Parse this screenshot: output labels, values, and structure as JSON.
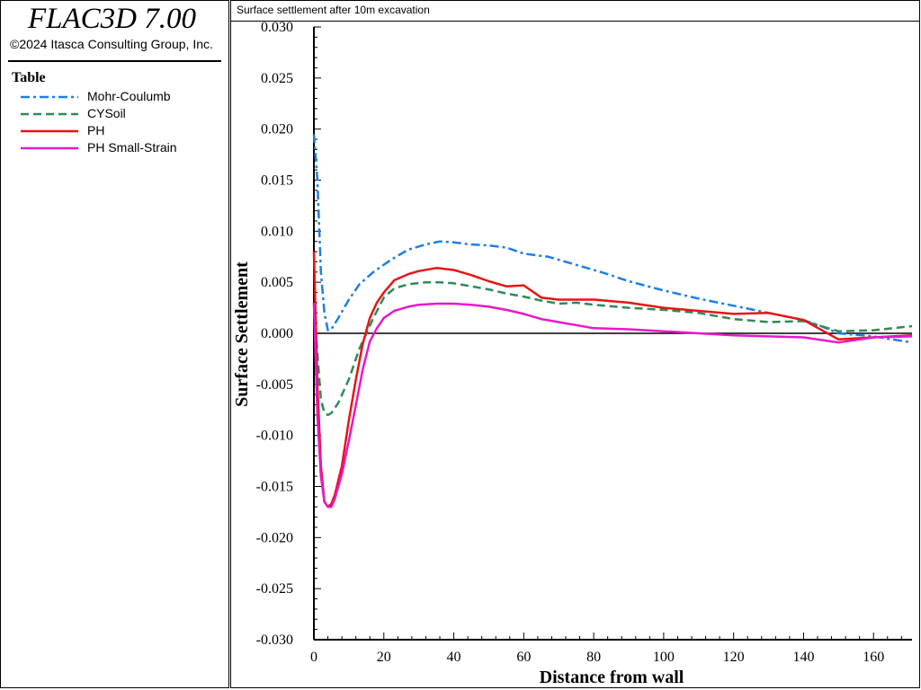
{
  "app": {
    "title": "FLAC3D 7.00",
    "copyright": "©2024 Itasca Consulting Group, Inc."
  },
  "legend": {
    "title": "Table",
    "items": [
      {
        "label": "Mohr-Coulumb",
        "color": "#1e7ee8",
        "dash": "dash-dot"
      },
      {
        "label": "CYSoil",
        "color": "#2e8b57",
        "dash": "dashed"
      },
      {
        "label": "PH",
        "color": "#e81414",
        "dash": "solid"
      },
      {
        "label": "PH Small-Strain",
        "color": "#e818c8",
        "dash": "solid"
      }
    ]
  },
  "chart_data": {
    "type": "line",
    "title": "Surface settlement after 10m excavation",
    "xlabel": "Distance from wall",
    "ylabel": "Surface Settlement",
    "xlim": [
      0,
      171
    ],
    "ylim": [
      -0.03,
      0.03
    ],
    "xticks": [
      0,
      20,
      40,
      60,
      80,
      100,
      120,
      140,
      160
    ],
    "yticks": [
      "0.030",
      "0.025",
      "0.020",
      "0.015",
      "0.010",
      "0.005",
      "0.000",
      "-0.005",
      "-0.010",
      "-0.015",
      "-0.020",
      "-0.025",
      "-0.030"
    ],
    "zero_line": true,
    "series": [
      {
        "name": "Mohr-Coulumb",
        "color": "#1e7ee8",
        "dash": "dash-dot",
        "x": [
          0,
          1,
          2,
          3,
          4,
          5,
          7,
          10,
          13,
          17,
          22,
          27,
          32,
          36,
          40,
          45,
          50,
          55,
          60,
          67,
          75,
          83,
          90,
          100,
          110,
          120,
          130,
          140,
          145,
          150,
          160,
          171
        ],
        "y": [
          0.0195,
          0.015,
          0.006,
          0.002,
          0.0003,
          0.0004,
          0.0015,
          0.0033,
          0.0048,
          0.006,
          0.0072,
          0.0082,
          0.0087,
          0.009,
          0.0089,
          0.0087,
          0.0086,
          0.0084,
          0.0078,
          0.0075,
          0.0067,
          0.0059,
          0.0051,
          0.0042,
          0.0034,
          0.0027,
          0.002,
          0.0013,
          0.0007,
          0.0,
          -0.0003,
          -0.0009
        ]
      },
      {
        "name": "CYSoil",
        "color": "#2e8b57",
        "dash": "dashed",
        "x": [
          0,
          1,
          2,
          3,
          4,
          5,
          7,
          10,
          13,
          17,
          20,
          23,
          27,
          32,
          36,
          40,
          45,
          50,
          55,
          60,
          65,
          70,
          75,
          80,
          90,
          100,
          110,
          120,
          130,
          140,
          145,
          150,
          160,
          171
        ],
        "y": [
          0.003,
          -0.002,
          -0.0065,
          -0.0078,
          -0.008,
          -0.0078,
          -0.0068,
          -0.0045,
          -0.0015,
          0.0015,
          0.0035,
          0.0044,
          0.0048,
          0.005,
          0.005,
          0.0049,
          0.0046,
          0.0043,
          0.0039,
          0.0036,
          0.0032,
          0.0029,
          0.003,
          0.0028,
          0.0025,
          0.0023,
          0.002,
          0.0014,
          0.0011,
          0.0012,
          0.0007,
          0.0002,
          0.0003,
          0.0007
        ]
      },
      {
        "name": "PH",
        "color": "#e81414",
        "dash": "solid",
        "x": [
          0,
          1,
          2,
          3,
          4,
          5,
          6,
          8,
          10,
          12,
          14,
          16,
          18,
          20,
          23,
          27,
          30,
          35,
          40,
          45,
          50,
          55,
          60,
          65,
          70,
          80,
          90,
          100,
          110,
          120,
          130,
          140,
          150,
          160,
          171
        ],
        "y": [
          0.008,
          -0.005,
          -0.013,
          -0.0165,
          -0.017,
          -0.0167,
          -0.0158,
          -0.013,
          -0.0085,
          -0.0045,
          -0.001,
          0.0015,
          0.003,
          0.004,
          0.0052,
          0.0058,
          0.0061,
          0.0064,
          0.0062,
          0.0057,
          0.0051,
          0.0046,
          0.0047,
          0.0035,
          0.0033,
          0.0033,
          0.003,
          0.0025,
          0.0022,
          0.0019,
          0.002,
          0.0013,
          -0.0006,
          -0.0004,
          -0.0002
        ]
      },
      {
        "name": "PH Small-Strain",
        "color": "#e818c8",
        "dash": "solid",
        "x": [
          0,
          1,
          2,
          3,
          4,
          5,
          6,
          8,
          10,
          12,
          14,
          16,
          18,
          20,
          23,
          27,
          30,
          35,
          40,
          45,
          50,
          55,
          60,
          65,
          70,
          80,
          90,
          100,
          110,
          120,
          130,
          140,
          150,
          160,
          171
        ],
        "y": [
          0.003,
          -0.008,
          -0.014,
          -0.0165,
          -0.017,
          -0.017,
          -0.0162,
          -0.0138,
          -0.0105,
          -0.007,
          -0.0035,
          -0.0008,
          0.0005,
          0.0015,
          0.0022,
          0.0026,
          0.0028,
          0.0029,
          0.0029,
          0.0028,
          0.0026,
          0.0023,
          0.0019,
          0.0014,
          0.0011,
          0.0005,
          0.0004,
          0.0002,
          0.0,
          -0.0002,
          -0.0003,
          -0.0004,
          -0.0009,
          -0.0004,
          -0.0003
        ]
      }
    ]
  }
}
